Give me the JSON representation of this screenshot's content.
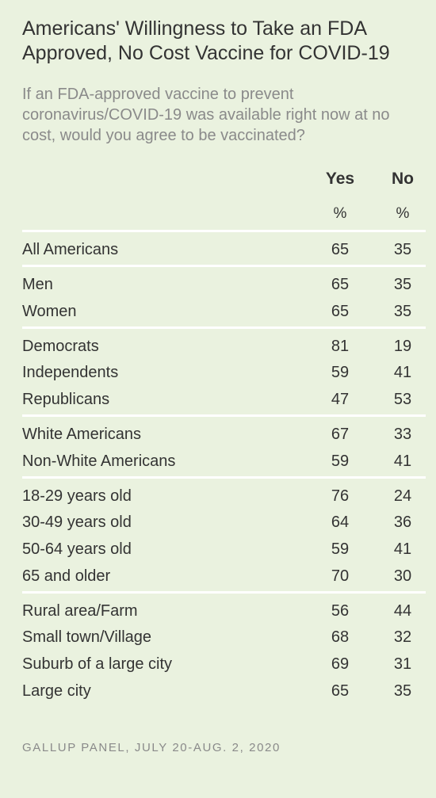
{
  "chart_data": {
    "type": "table",
    "title": "Americans' Willingness to Take an FDA Approved, No Cost Vaccine for COVID-19",
    "subtitle": "If an FDA-approved vaccine to prevent coronavirus/COVID-19 was available right now at no cost, would you agree to be vaccinated?",
    "columns": [
      "Yes",
      "No"
    ],
    "units": [
      "%",
      "%"
    ],
    "groups": [
      [
        {
          "label": "All Americans",
          "yes": 65,
          "no": 35
        }
      ],
      [
        {
          "label": "Men",
          "yes": 65,
          "no": 35
        },
        {
          "label": "Women",
          "yes": 65,
          "no": 35
        }
      ],
      [
        {
          "label": "Democrats",
          "yes": 81,
          "no": 19
        },
        {
          "label": "Independents",
          "yes": 59,
          "no": 41
        },
        {
          "label": "Republicans",
          "yes": 47,
          "no": 53
        }
      ],
      [
        {
          "label": "White Americans",
          "yes": 67,
          "no": 33
        },
        {
          "label": "Non-White Americans",
          "yes": 59,
          "no": 41
        }
      ],
      [
        {
          "label": "18-29 years old",
          "yes": 76,
          "no": 24
        },
        {
          "label": "30-49 years old",
          "yes": 64,
          "no": 36
        },
        {
          "label": "50-64 years old",
          "yes": 59,
          "no": 41
        },
        {
          "label": "65 and older",
          "yes": 70,
          "no": 30
        }
      ],
      [
        {
          "label": "Rural area/Farm",
          "yes": 56,
          "no": 44
        },
        {
          "label": "Small town/Village",
          "yes": 68,
          "no": 32
        },
        {
          "label": "Suburb of a large city",
          "yes": 69,
          "no": 31
        },
        {
          "label": "Large city",
          "yes": 65,
          "no": 35
        }
      ]
    ],
    "source": "GALLUP PANEL, JULY 20-AUG. 2, 2020"
  },
  "colors": {
    "background": "#eaf2df",
    "text": "#333333",
    "muted_text": "#8a8a8a",
    "separator": "#ffffff"
  }
}
